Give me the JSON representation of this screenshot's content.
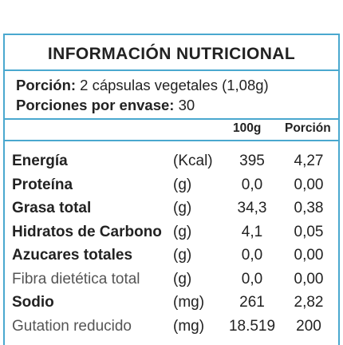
{
  "title": "INFORMACIÓN NUTRICIONAL",
  "serving": {
    "portion_label": "Porción:",
    "portion_value": "2 cápsulas vegetales (1,08g)",
    "per_container_label": "Porciones por envase:",
    "per_container_value": "30"
  },
  "columns": {
    "per100": "100g",
    "portion": "Porción"
  },
  "rows": [
    {
      "name": "Energía",
      "unit": "(Kcal)",
      "per100": "395",
      "portion": "4,27",
      "weight": "bold"
    },
    {
      "name": "Proteína",
      "unit": "(g)",
      "per100": "0,0",
      "portion": "0,00",
      "weight": "bold"
    },
    {
      "name": "Grasa total",
      "unit": "(g)",
      "per100": "34,3",
      "portion": "0,38",
      "weight": "bold"
    },
    {
      "name": "Hidratos de Carbono",
      "unit": "(g)",
      "per100": "4,1",
      "portion": "0,05",
      "weight": "bold"
    },
    {
      "name": "Azucares totales",
      "unit": "(g)",
      "per100": "0,0",
      "portion": "0,00",
      "weight": "bold"
    },
    {
      "name": "Fibra dietética total",
      "unit": "(g)",
      "per100": "0,0",
      "portion": "0,00",
      "weight": "light"
    },
    {
      "name": "Sodio",
      "unit": "(mg)",
      "per100": "261",
      "portion": "2,82",
      "weight": "bold"
    },
    {
      "name": "Gutation reducido",
      "unit": "(mg)",
      "per100": "18.519",
      "portion": "200",
      "weight": "light"
    }
  ],
  "colors": {
    "border": "#4aa8cf",
    "text": "#222222",
    "light_text": "#555555"
  }
}
